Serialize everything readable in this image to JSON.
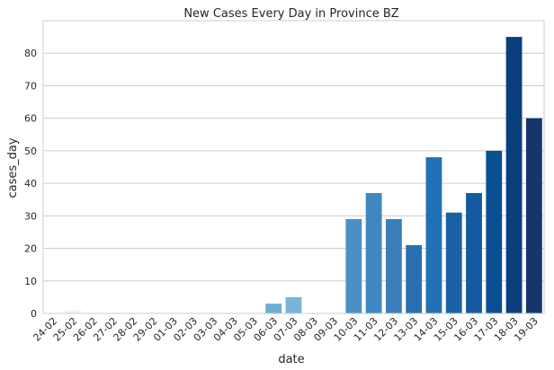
{
  "chart_data": {
    "type": "bar",
    "title": "New Cases Every Day in Province BZ",
    "xlabel": "date",
    "ylabel": "cases_day",
    "ylim": [
      0,
      90
    ],
    "yticks": [
      0,
      10,
      20,
      30,
      40,
      50,
      60,
      70,
      80
    ],
    "grid": "horizontal",
    "palette": "sequential blues (light to dark)",
    "categories": [
      "24-02",
      "25-02",
      "26-02",
      "27-02",
      "28-02",
      "29-02",
      "01-03",
      "02-03",
      "03-03",
      "04-03",
      "05-03",
      "06-03",
      "07-03",
      "08-03",
      "09-03",
      "10-03",
      "11-03",
      "12-03",
      "13-03",
      "14-03",
      "15-03",
      "16-03",
      "17-03",
      "18-03",
      "19-03"
    ],
    "values": [
      0,
      1,
      0,
      0,
      0,
      0,
      0,
      0,
      0,
      0,
      0,
      3,
      5,
      0,
      0,
      29,
      37,
      29,
      21,
      48,
      31,
      37,
      50,
      85,
      60
    ],
    "colors": [
      "#f7fbff",
      "#eaf3fb",
      "#deebf7",
      "#d2e3f3",
      "#c6dbef",
      "#b2d2e8",
      "#9ecae1",
      "#84bcdb",
      "#6aaed6",
      "#57a0ce",
      "#4292c6",
      "#6baed6",
      "#79b5d9",
      "#4292c6",
      "#2e7ebc",
      "#4a90c4",
      "#3f87c0",
      "#3a7fba",
      "#2a6fb0",
      "#2171b5",
      "#1a62a5",
      "#135a9f",
      "#0b4f93",
      "#0a3f7e",
      "#15366b"
    ]
  }
}
